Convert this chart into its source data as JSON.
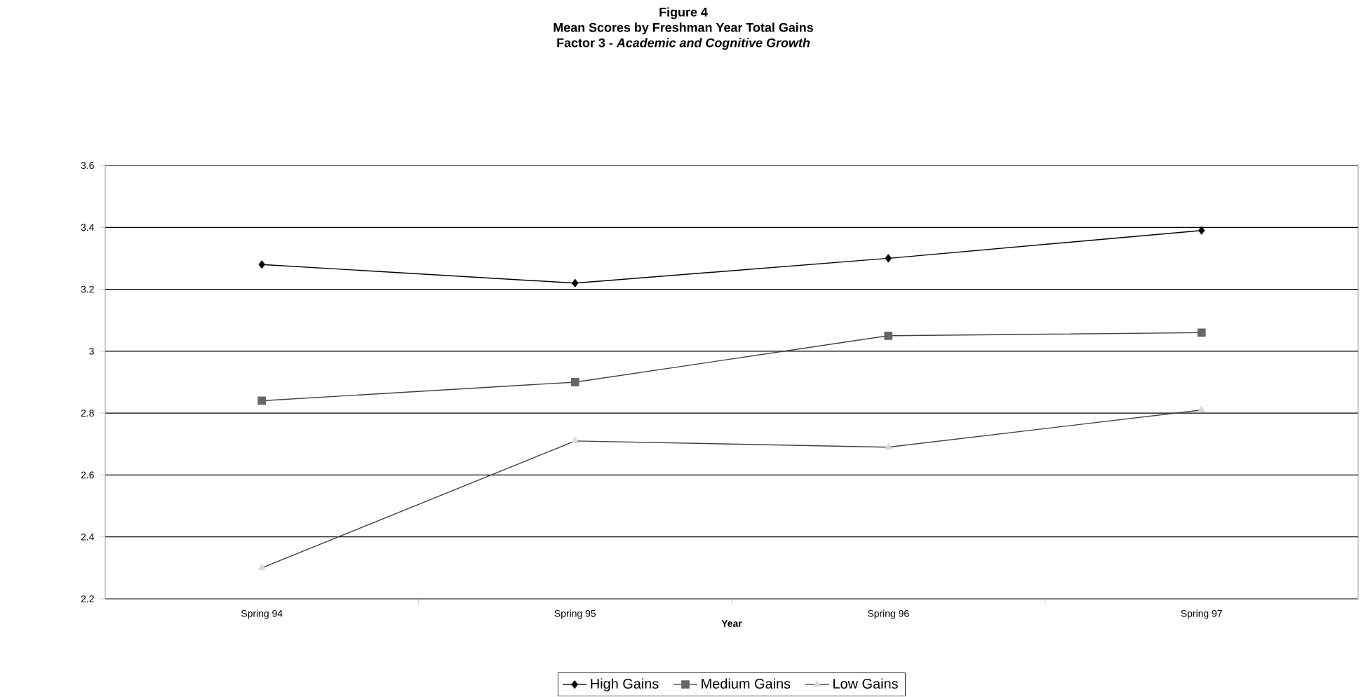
{
  "chart_data": {
    "type": "line",
    "title": "Figure 4",
    "subtitle": "Mean Scores by Freshman Year Total Gains",
    "annotations": [
      "Factor 3 - *Academic and Cognitive Growth*"
    ],
    "xlabel": "Year",
    "categories": [
      "Spring 94",
      "Spring 95",
      "Spring 96",
      "Spring 97"
    ],
    "series": [
      {
        "name": "High Gains",
        "color": "#000000",
        "marker": "diamond",
        "values": [
          3.28,
          3.22,
          3.3,
          3.39
        ]
      },
      {
        "name": "Medium Gains",
        "color": "#666666",
        "marker": "square",
        "values": [
          2.84,
          2.9,
          3.05,
          3.06
        ]
      },
      {
        "name": "Low Gains",
        "color": "#d9d9d9",
        "marker": "triangle",
        "values": [
          2.3,
          2.71,
          2.69,
          2.81
        ]
      }
    ],
    "ylim": [
      2.2,
      3.6
    ],
    "yticks": [
      2.2,
      2.4,
      2.6,
      2.8,
      3,
      3.2,
      3.4,
      3.6
    ],
    "grid": "y",
    "legend": "bottom",
    "line_style": "solid"
  }
}
